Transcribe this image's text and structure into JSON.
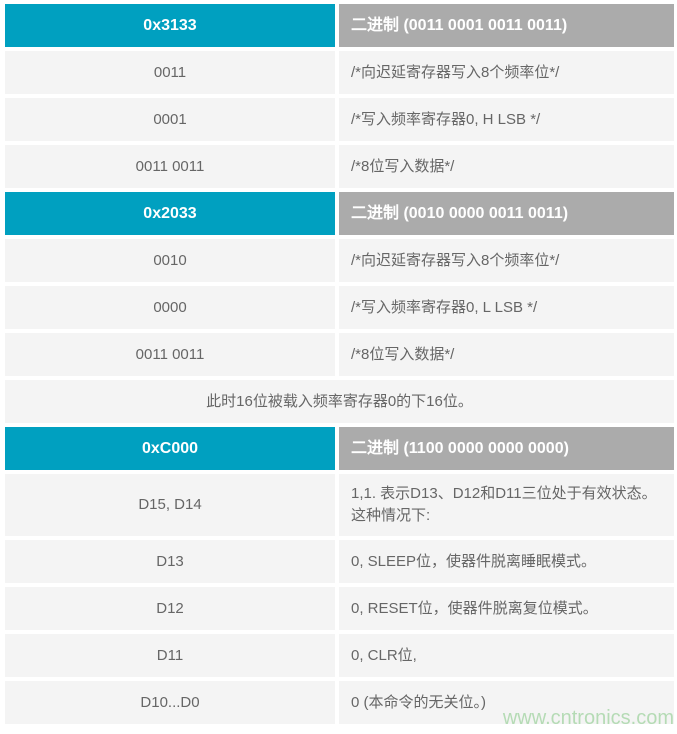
{
  "colors": {
    "header_hex_bg": "#00a0c0",
    "header_binary_bg": "#ababab",
    "row_bg": "#f4f4f4",
    "body_text": "#666666",
    "header_text": "#ffffff",
    "watermark_text": "#b5dbb5"
  },
  "sections": [
    {
      "header": {
        "hex": "0x3133",
        "binary": "二进制 (0011 0001 0011 0011)"
      },
      "rows": [
        {
          "left": "0011",
          "right": "/*向迟延寄存器写入8个频率位*/"
        },
        {
          "left": "0001",
          "right": "/*写入频率寄存器0, H LSB */"
        },
        {
          "left": "0011 0011",
          "right": "/*8位写入数据*/"
        }
      ]
    },
    {
      "header": {
        "hex": "0x2033",
        "binary": "二进制 (0010 0000 0011 0011)"
      },
      "rows": [
        {
          "left": "0010",
          "right": "/*向迟延寄存器写入8个频率位*/"
        },
        {
          "left": "0000",
          "right": "/*写入频率寄存器0, L LSB */"
        },
        {
          "left": "0011 0011",
          "right": "/*8位写入数据*/"
        }
      ]
    },
    {
      "header": {
        "hex": "0xC000",
        "binary": "二进制 (1100 0000 0000 0000)"
      },
      "rows": [
        {
          "left": "D15, D14",
          "right": "1,1. 表示D13、D12和D11三位处于有效状态。这种情况下:"
        },
        {
          "left": "D13",
          "right": "0, SLEEP位，使器件脱离睡眠模式。"
        },
        {
          "left": "D12",
          "right": "0, RESET位，使器件脱离复位模式。"
        },
        {
          "left": "D11",
          "right": "0, CLR位,"
        },
        {
          "left": "D10...D0",
          "right": "0 (本命令的无关位。)"
        }
      ]
    }
  ],
  "note": {
    "text": "此时16位被载入频率寄存器0的下16位。"
  },
  "watermark": {
    "text": "www.cntronics.com"
  }
}
